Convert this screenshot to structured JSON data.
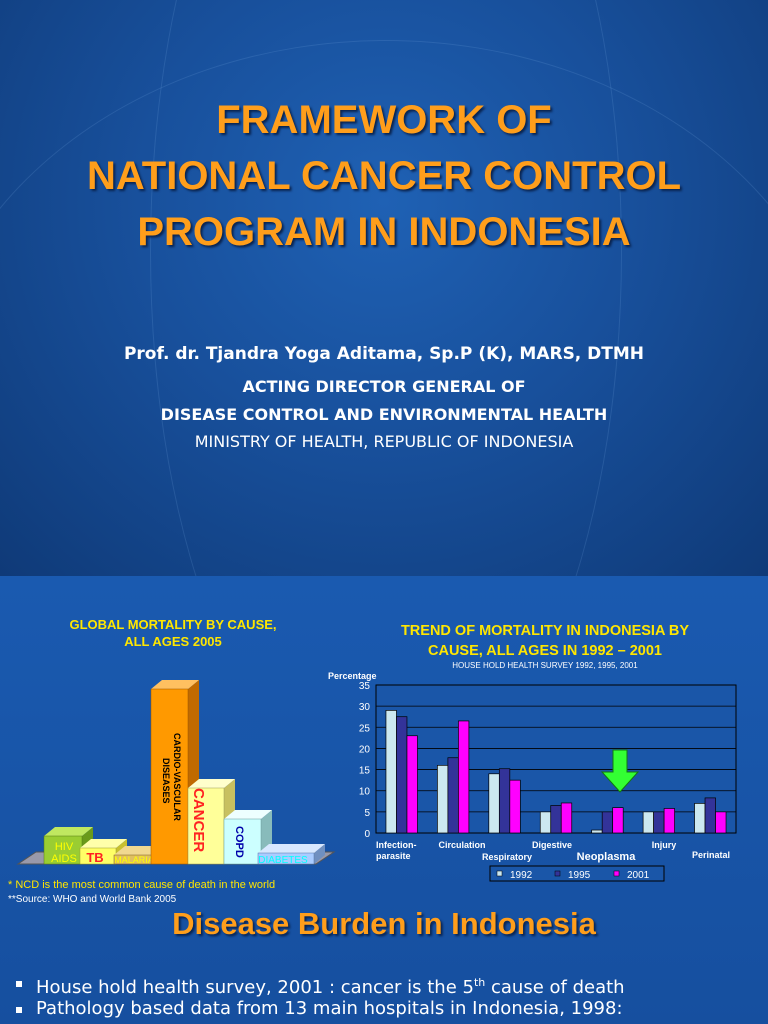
{
  "slide1": {
    "title_lines": [
      "FRAMEWORK OF",
      "NATIONAL CANCER CONTROL",
      "PROGRAM IN INDONESIA"
    ],
    "author": "Prof. dr. Tjandra Yoga Aditama, Sp.P (K), MARS, DTMH",
    "role_line1": "ACTING DIRECTOR GENERAL OF",
    "role_line2": "DISEASE CONTROL AND ENVIRONMENTAL HEALTH",
    "ministry": "MINISTRY OF HEALTH, REPUBLIC OF INDONESIA"
  },
  "slide2": {
    "left_title_lines": [
      "GLOBAL MORTALITY BY CAUSE,",
      "ALL AGES 2005"
    ],
    "right_title_lines": [
      "TREND OF MORTALITY IN INDONESIA BY",
      "CAUSE, ALL AGES IN 1992 – 2001"
    ],
    "right_subtitle": "HOUSE HOLD HEALTH SURVEY 1992, 1995, 2001",
    "note1": "*  NCD is the most common cause of death in the world",
    "note2": "**Source: WHO and World Bank 2005",
    "section_title": "Disease Burden in Indonesia",
    "bullet1_pre": "House hold health survey, 2001 : cancer is the 5",
    "bullet1_sup": "th",
    "bullet1_post": " cause of death",
    "bullet2": "Pathology based data from 13 main hospitals in Indonesia, 1998:",
    "colors": {
      "orange_title": "#ff9e1b",
      "yellow": "#ffe600",
      "bg": "#1a56a8"
    }
  },
  "chart_data": [
    {
      "type": "bar",
      "title": "GLOBAL MORTALITY BY CAUSE, ALL AGES 2005",
      "style": "3d-bar",
      "categories": [
        "HIV AIDS",
        "TB",
        "MALARIA",
        "CARDIO-VASCULAR DISEASES",
        "CANCER",
        "COPD",
        "DIABETES"
      ],
      "labels": {
        "hiv": [
          "HIV",
          "AIDS"
        ],
        "tb": "TB",
        "malaria": "MALARIA",
        "cvd": [
          "CARDIO-VASCULAR",
          "DISEASES"
        ],
        "cancer": "CANCER",
        "copd": "COPD",
        "diabetes": "DIABETES"
      },
      "values": [
        2.8,
        1.6,
        0.9,
        17.5,
        7.6,
        4.5,
        1.1
      ],
      "ylim": [
        0,
        18
      ],
      "colors": [
        "#9acd32",
        "#ffff66",
        "#e0c060",
        "#ff9900",
        "#ffff99",
        "#ccffff",
        "#aaccff"
      ]
    },
    {
      "type": "bar",
      "title": "TREND OF MORTALITY IN INDONESIA BY CAUSE, ALL AGES IN 1992 – 2001",
      "subtitle": "HOUSE HOLD HEALTH SURVEY 1992, 1995, 2001",
      "ylabel": "Percentage",
      "ylim": [
        0,
        35
      ],
      "yticks": [
        "0",
        "5",
        "10",
        "15",
        "20",
        "25",
        "30",
        "35"
      ],
      "grid": true,
      "legend": "bottom",
      "categories": [
        "Infection-parasite",
        "Circulation",
        "Respiratory",
        "Digestive",
        "Neoplasma",
        "Injury",
        "Perinatal"
      ],
      "category_label_lines": [
        [
          "Infection-",
          "parasite"
        ],
        [
          "Circulation"
        ],
        [
          "Respiratory"
        ],
        [
          "Digestive"
        ],
        [
          "Neoplasma"
        ],
        [
          "Injury"
        ],
        [
          "Perinatal"
        ]
      ],
      "series": [
        {
          "name": "1992",
          "color": "#cce8f0",
          "values": [
            29,
            16,
            14,
            5,
            0.7,
            5,
            7
          ]
        },
        {
          "name": "1995",
          "color": "#333399",
          "values": [
            27.5,
            17.8,
            15.2,
            6.5,
            5,
            5,
            8.3
          ]
        },
        {
          "name": "2001",
          "color": "#ff00ff",
          "values": [
            23,
            26.5,
            12.5,
            7.1,
            6,
            5.8,
            5
          ]
        }
      ],
      "highlight_category": "Neoplasma"
    }
  ]
}
